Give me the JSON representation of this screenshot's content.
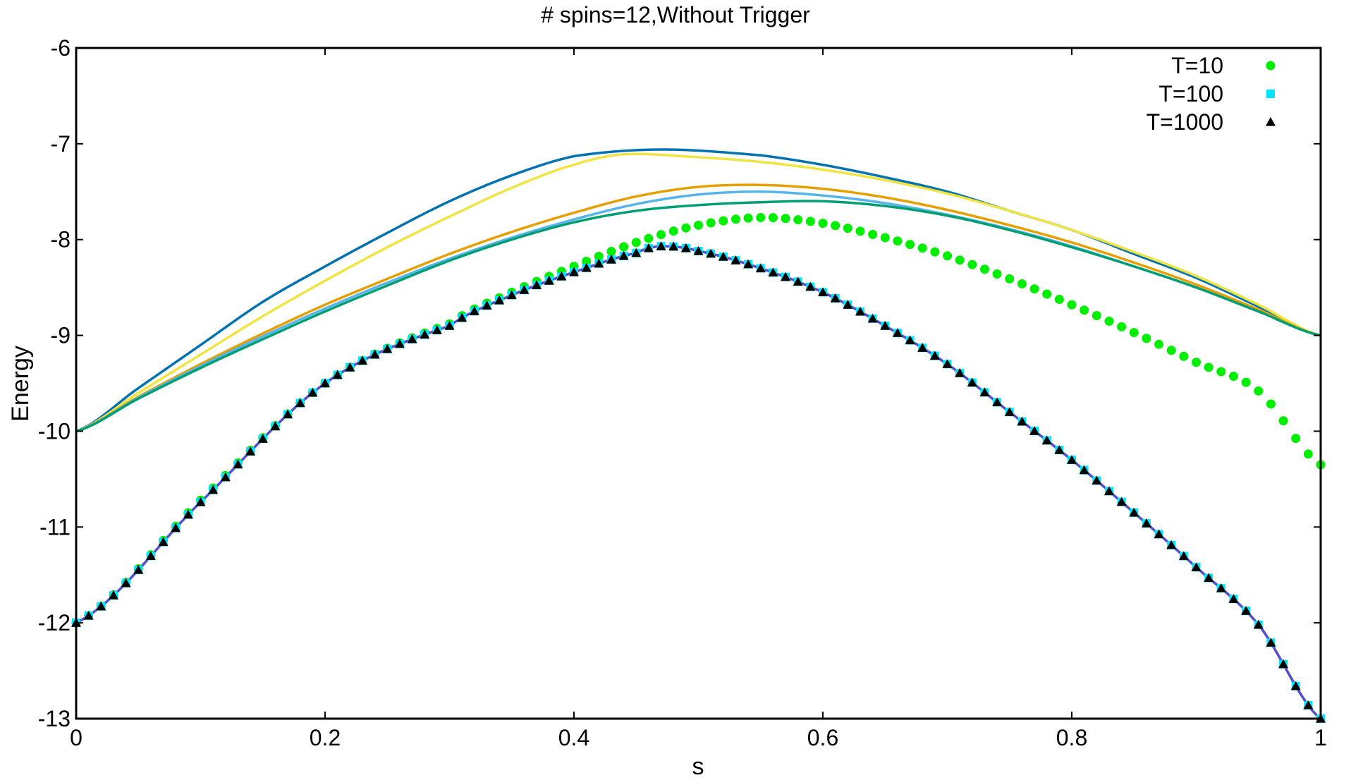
{
  "chart_data": {
    "type": "line",
    "title": "# spins=12,Without Trigger",
    "xlabel": "s",
    "ylabel": "Energy",
    "xlim": [
      0,
      1
    ],
    "ylim": [
      -13,
      -6
    ],
    "x_ticks": [
      "0",
      "0.2",
      "0.4",
      "0.6",
      "0.8",
      "1"
    ],
    "y_ticks": [
      "-6",
      "-7",
      "-8",
      "-9",
      "-10",
      "-11",
      "-12",
      "-13"
    ],
    "grid": false,
    "legend_position": "top-right",
    "lines": [
      {
        "color": "#0072b2",
        "points": [
          [
            0,
            -10
          ],
          [
            0.05,
            -9.55
          ],
          [
            0.1,
            -9.1
          ],
          [
            0.15,
            -8.65
          ],
          [
            0.2,
            -8.28
          ],
          [
            0.25,
            -7.93
          ],
          [
            0.3,
            -7.6
          ],
          [
            0.35,
            -7.33
          ],
          [
            0.4,
            -7.13
          ],
          [
            0.47,
            -7.06
          ],
          [
            0.55,
            -7.12
          ],
          [
            0.6,
            -7.22
          ],
          [
            0.65,
            -7.35
          ],
          [
            0.7,
            -7.5
          ],
          [
            0.75,
            -7.7
          ],
          [
            0.8,
            -7.9
          ],
          [
            0.85,
            -8.15
          ],
          [
            0.9,
            -8.4
          ],
          [
            0.95,
            -8.7
          ],
          [
            1,
            -9
          ]
        ]
      },
      {
        "color": "#f0e442",
        "points": [
          [
            0,
            -10
          ],
          [
            0.05,
            -9.6
          ],
          [
            0.1,
            -9.2
          ],
          [
            0.15,
            -8.8
          ],
          [
            0.2,
            -8.43
          ],
          [
            0.25,
            -8.08
          ],
          [
            0.3,
            -7.76
          ],
          [
            0.35,
            -7.46
          ],
          [
            0.4,
            -7.22
          ],
          [
            0.44,
            -7.11
          ],
          [
            0.5,
            -7.14
          ],
          [
            0.55,
            -7.19
          ],
          [
            0.6,
            -7.27
          ],
          [
            0.65,
            -7.38
          ],
          [
            0.7,
            -7.52
          ],
          [
            0.75,
            -7.7
          ],
          [
            0.8,
            -7.9
          ],
          [
            0.85,
            -8.13
          ],
          [
            0.9,
            -8.38
          ],
          [
            0.95,
            -8.68
          ],
          [
            1,
            -9
          ]
        ]
      },
      {
        "color": "#e69f00",
        "points": [
          [
            0,
            -10
          ],
          [
            0.05,
            -9.64
          ],
          [
            0.1,
            -9.3
          ],
          [
            0.15,
            -8.98
          ],
          [
            0.2,
            -8.68
          ],
          [
            0.25,
            -8.41
          ],
          [
            0.3,
            -8.15
          ],
          [
            0.35,
            -7.92
          ],
          [
            0.4,
            -7.72
          ],
          [
            0.45,
            -7.55
          ],
          [
            0.5,
            -7.45
          ],
          [
            0.55,
            -7.43
          ],
          [
            0.6,
            -7.47
          ],
          [
            0.65,
            -7.56
          ],
          [
            0.7,
            -7.69
          ],
          [
            0.75,
            -7.85
          ],
          [
            0.8,
            -8.03
          ],
          [
            0.85,
            -8.24
          ],
          [
            0.9,
            -8.47
          ],
          [
            0.95,
            -8.73
          ],
          [
            1,
            -9
          ]
        ]
      },
      {
        "color": "#56b4e9",
        "points": [
          [
            0,
            -10
          ],
          [
            0.05,
            -9.65
          ],
          [
            0.1,
            -9.32
          ],
          [
            0.15,
            -9.01
          ],
          [
            0.2,
            -8.72
          ],
          [
            0.25,
            -8.45
          ],
          [
            0.3,
            -8.2
          ],
          [
            0.35,
            -7.98
          ],
          [
            0.4,
            -7.79
          ],
          [
            0.45,
            -7.63
          ],
          [
            0.5,
            -7.53
          ],
          [
            0.55,
            -7.5
          ],
          [
            0.6,
            -7.54
          ],
          [
            0.65,
            -7.62
          ],
          [
            0.7,
            -7.74
          ],
          [
            0.75,
            -7.89
          ],
          [
            0.8,
            -8.07
          ],
          [
            0.85,
            -8.28
          ],
          [
            0.9,
            -8.5
          ],
          [
            0.95,
            -8.75
          ],
          [
            1,
            -9
          ]
        ]
      },
      {
        "color": "#009e73",
        "points": [
          [
            0,
            -10
          ],
          [
            0.05,
            -9.66
          ],
          [
            0.1,
            -9.34
          ],
          [
            0.15,
            -9.04
          ],
          [
            0.2,
            -8.75
          ],
          [
            0.25,
            -8.48
          ],
          [
            0.3,
            -8.22
          ],
          [
            0.35,
            -8.0
          ],
          [
            0.4,
            -7.82
          ],
          [
            0.45,
            -7.7
          ],
          [
            0.5,
            -7.64
          ],
          [
            0.55,
            -7.61
          ],
          [
            0.6,
            -7.6
          ],
          [
            0.65,
            -7.65
          ],
          [
            0.7,
            -7.75
          ],
          [
            0.75,
            -7.9
          ],
          [
            0.8,
            -8.08
          ],
          [
            0.85,
            -8.28
          ],
          [
            0.9,
            -8.5
          ],
          [
            0.95,
            -8.75
          ],
          [
            1,
            -9
          ]
        ]
      },
      {
        "color": "#cc79a7",
        "points": [
          [
            0,
            -12
          ],
          [
            0.1,
            -10.74
          ],
          [
            0.2,
            -9.5
          ],
          [
            0.3,
            -8.9
          ],
          [
            0.35,
            -8.58
          ],
          [
            0.4,
            -8.34
          ],
          [
            0.45,
            -8.14
          ],
          [
            0.47,
            -8.07
          ],
          [
            0.5,
            -8.12
          ],
          [
            0.55,
            -8.3
          ],
          [
            0.6,
            -8.55
          ],
          [
            0.65,
            -8.9
          ],
          [
            0.7,
            -9.3
          ],
          [
            0.75,
            -9.8
          ],
          [
            0.8,
            -10.3
          ],
          [
            0.85,
            -10.85
          ],
          [
            0.9,
            -11.42
          ],
          [
            0.95,
            -12.02
          ],
          [
            1,
            -13
          ]
        ]
      },
      {
        "color": "#5050d0",
        "points": [
          [
            0,
            -12
          ],
          [
            0.1,
            -10.74
          ],
          [
            0.2,
            -9.5
          ],
          [
            0.3,
            -8.9
          ],
          [
            0.35,
            -8.58
          ],
          [
            0.4,
            -8.34
          ],
          [
            0.45,
            -8.14
          ],
          [
            0.47,
            -8.07
          ],
          [
            0.5,
            -8.12
          ],
          [
            0.55,
            -8.3
          ],
          [
            0.6,
            -8.55
          ],
          [
            0.65,
            -8.9
          ],
          [
            0.7,
            -9.3
          ],
          [
            0.75,
            -9.8
          ],
          [
            0.8,
            -10.3
          ],
          [
            0.85,
            -10.85
          ],
          [
            0.9,
            -11.42
          ],
          [
            0.95,
            -12.02
          ],
          [
            1,
            -13
          ]
        ]
      }
    ],
    "series": [
      {
        "name": "T=10",
        "marker": "circle",
        "color": "#00ee00",
        "x_range": [
          0,
          1
        ],
        "count": 101,
        "points": [
          [
            0,
            -12
          ],
          [
            0.1,
            -10.72
          ],
          [
            0.2,
            -9.5
          ],
          [
            0.3,
            -8.88
          ],
          [
            0.35,
            -8.55
          ],
          [
            0.4,
            -8.28
          ],
          [
            0.45,
            -8.03
          ],
          [
            0.5,
            -7.85
          ],
          [
            0.55,
            -7.77
          ],
          [
            0.6,
            -7.83
          ],
          [
            0.65,
            -7.98
          ],
          [
            0.7,
            -8.17
          ],
          [
            0.75,
            -8.41
          ],
          [
            0.8,
            -8.68
          ],
          [
            0.85,
            -8.97
          ],
          [
            0.9,
            -9.28
          ],
          [
            0.95,
            -9.58
          ],
          [
            1,
            -10.35
          ]
        ]
      },
      {
        "name": "T=100",
        "marker": "square",
        "color": "#00e5ff",
        "x_range": [
          0,
          1
        ],
        "count": 101,
        "points": [
          [
            0,
            -12
          ],
          [
            0.1,
            -10.74
          ],
          [
            0.2,
            -9.5
          ],
          [
            0.3,
            -8.9
          ],
          [
            0.35,
            -8.58
          ],
          [
            0.4,
            -8.34
          ],
          [
            0.45,
            -8.14
          ],
          [
            0.47,
            -8.07
          ],
          [
            0.5,
            -8.12
          ],
          [
            0.55,
            -8.3
          ],
          [
            0.6,
            -8.55
          ],
          [
            0.65,
            -8.9
          ],
          [
            0.7,
            -9.3
          ],
          [
            0.75,
            -9.8
          ],
          [
            0.8,
            -10.3
          ],
          [
            0.85,
            -10.85
          ],
          [
            0.9,
            -11.42
          ],
          [
            0.95,
            -12.02
          ],
          [
            1,
            -13
          ]
        ]
      },
      {
        "name": "T=1000",
        "marker": "triangle",
        "color": "#000000",
        "x_range": [
          0,
          1
        ],
        "count": 101,
        "points": [
          [
            0,
            -12
          ],
          [
            0.1,
            -10.74
          ],
          [
            0.2,
            -9.5
          ],
          [
            0.3,
            -8.9
          ],
          [
            0.35,
            -8.58
          ],
          [
            0.4,
            -8.34
          ],
          [
            0.45,
            -8.14
          ],
          [
            0.47,
            -8.07
          ],
          [
            0.5,
            -8.12
          ],
          [
            0.55,
            -8.3
          ],
          [
            0.6,
            -8.55
          ],
          [
            0.65,
            -8.9
          ],
          [
            0.7,
            -9.3
          ],
          [
            0.75,
            -9.8
          ],
          [
            0.8,
            -10.3
          ],
          [
            0.85,
            -10.85
          ],
          [
            0.9,
            -11.42
          ],
          [
            0.95,
            -12.02
          ],
          [
            1,
            -13
          ]
        ]
      }
    ]
  }
}
